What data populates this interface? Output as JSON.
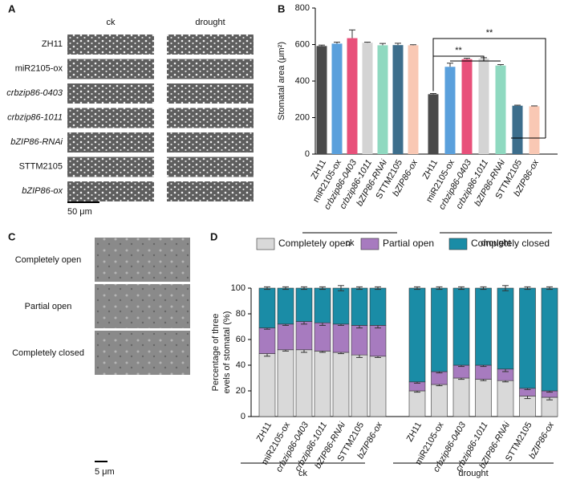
{
  "panel_labels": [
    "A",
    "B",
    "C",
    "D"
  ],
  "panel_a": {
    "columns": [
      "ck",
      "drought"
    ],
    "rows": [
      "ZH11",
      "miR2105-ox",
      "crbzip86-0403",
      "crbzip86-1011",
      "bZIP86-RNAi",
      "STTM2105",
      "bZIP86-ox"
    ],
    "scale_bar": "50 μm"
  },
  "panel_c": {
    "rows": [
      "Completely open",
      "Partial open",
      "Completely closed"
    ],
    "scale_bar": "5 μm"
  },
  "chart_data": [
    {
      "type": "bar",
      "ylabel": "Stomatal area (μm²)",
      "categories": [
        "ZH11",
        "miR2105-ox",
        "crbzip86-0403",
        "crbzip86-1011",
        "bZIP86-RNAi",
        "STTM2105",
        "bZIP86-ox",
        "ZH11",
        "miR2105-ox",
        "crbzip86-0403",
        "crbzip86-1011",
        "bZIP86-RNAi",
        "STTM2105",
        "bZIP86-ox"
      ],
      "values": [
        592,
        605,
        635,
        610,
        596,
        597,
        596,
        328,
        478,
        520,
        523,
        485,
        265,
        262
      ],
      "errors": [
        5,
        8,
        45,
        3,
        10,
        10,
        3,
        4,
        20,
        5,
        5,
        5,
        3,
        2
      ],
      "colors": [
        "#4a4a4a",
        "#5aa0dc",
        "#e8507a",
        "#d4d4d4",
        "#8fd9c0",
        "#3d6e8c",
        "#f9c8b4",
        "#4a4a4a",
        "#5aa0dc",
        "#e8507a",
        "#d4d4d4",
        "#8fd9c0",
        "#3d6e8c",
        "#f9c8b4"
      ],
      "ylim": [
        0,
        800
      ],
      "yticks": [
        0,
        200,
        400,
        600,
        800
      ],
      "groups": [
        "ck",
        "drought"
      ],
      "annotations": [
        "**",
        "**"
      ]
    },
    {
      "type": "stacked_bar",
      "ylabel": [
        "Percentage of three",
        "evels of stomatal (%)"
      ],
      "categories": [
        "ZH11",
        "miR2105-ox",
        "crbzip86-0403",
        "crbzip86-1011",
        "bZIP86-RNAi",
        "STTM2105",
        "bZIP86-ox",
        "ZH11",
        "miR2105-ox",
        "crbzip86-0403",
        "crbzip86-1011",
        "bZIP86-RNAi",
        "STTM2105",
        "bZIP86-ox"
      ],
      "series": [
        {
          "name": "Completely open",
          "color": "#d9d9d9",
          "values": [
            49,
            52,
            52,
            51,
            50,
            48,
            47,
            20,
            25,
            30,
            29,
            28,
            16,
            15
          ],
          "errors": [
            2,
            1,
            2,
            1,
            1,
            2,
            1,
            1,
            1,
            1,
            1,
            1,
            2,
            2
          ]
        },
        {
          "name": "Partial open",
          "color": "#a77bbf",
          "values": [
            20,
            20,
            22,
            22,
            22,
            23,
            24,
            7,
            10,
            10,
            11,
            9,
            6,
            5
          ],
          "errors": [
            1,
            1,
            2,
            2,
            1,
            2,
            2,
            1,
            1,
            1,
            1,
            2,
            1,
            1
          ]
        },
        {
          "name": "Completely closed",
          "color": "#1a8ca6",
          "values": [
            31,
            28,
            26,
            27,
            28,
            29,
            29,
            73,
            65,
            60,
            60,
            63,
            78,
            80
          ],
          "errors": [
            1,
            1,
            1,
            1,
            2,
            1,
            1,
            1,
            1,
            1,
            1,
            2,
            1,
            1
          ]
        }
      ],
      "ylim": [
        0,
        100
      ],
      "yticks": [
        0,
        20,
        40,
        60,
        80,
        100
      ],
      "groups": [
        "ck",
        "drought"
      ]
    }
  ]
}
